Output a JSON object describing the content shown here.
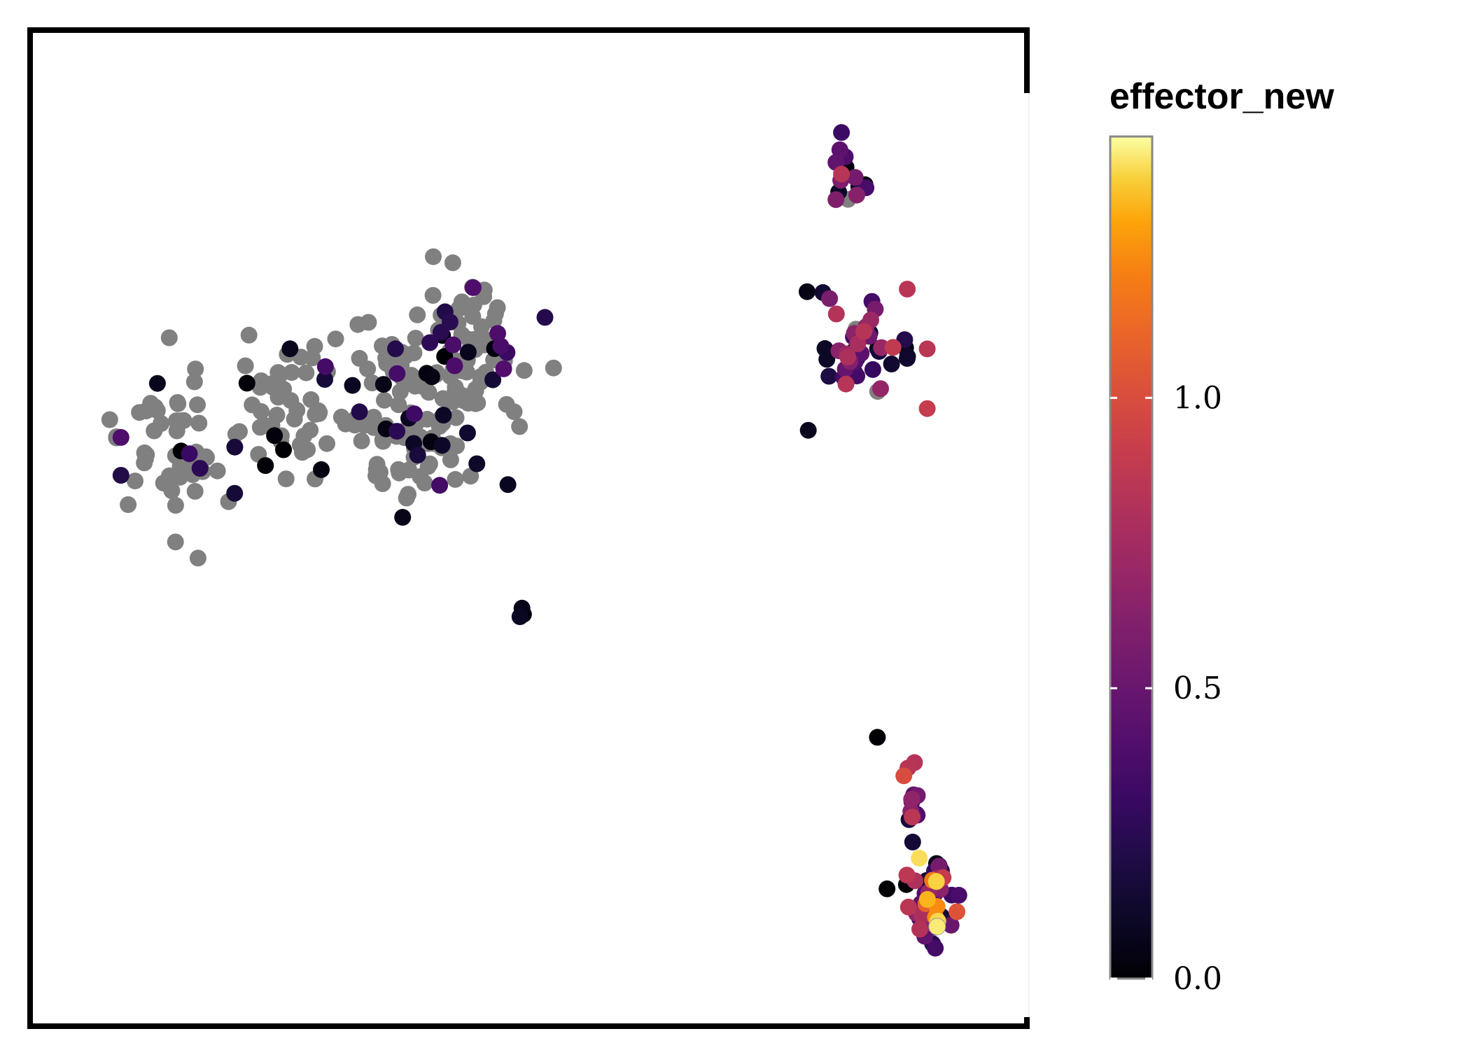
{
  "chart_data": {
    "type": "scatter",
    "title": "",
    "xlabel": "",
    "ylabel": "",
    "axes": {
      "x_ticks_visible": false,
      "y_ticks_visible": false,
      "grid": false,
      "frame": "left-top-bottom with short right segments",
      "xlim": [
        0,
        100
      ],
      "ylim": [
        0,
        100
      ]
    },
    "na_color": "#808080",
    "colorbar": {
      "title": "effector_new",
      "placement": "right",
      "range": [
        0,
        1.45
      ],
      "ticks": [
        {
          "value": 0.0,
          "label": "0.0"
        },
        {
          "value": 0.5,
          "label": "0.5"
        },
        {
          "value": 1.0,
          "label": "1.0"
        }
      ],
      "colormap": "inferno"
    },
    "clusters": [
      {
        "name": "left",
        "count": 300,
        "na_fraction": 0.82,
        "value_max": 0.45,
        "blobs": [
          {
            "cx": 14,
            "cy": 58,
            "rx": 5,
            "ry": 8,
            "n": 55
          },
          {
            "cx": 25,
            "cy": 63,
            "rx": 5,
            "ry": 7,
            "n": 55
          },
          {
            "cx": 38,
            "cy": 61,
            "rx": 7,
            "ry": 8,
            "n": 120
          },
          {
            "cx": 44,
            "cy": 68,
            "rx": 6,
            "ry": 6,
            "n": 70
          }
        ]
      },
      {
        "name": "top-right",
        "count": 60,
        "na_fraction": 0.05,
        "value_max": 0.9,
        "blobs": [
          {
            "cx": 82.5,
            "cy": 86,
            "rx": 2.5,
            "ry": 3.5,
            "n": 15
          },
          {
            "cx": 83,
            "cy": 68,
            "rx": 5,
            "ry": 5.5,
            "n": 45
          }
        ]
      },
      {
        "name": "bottom-right",
        "count": 60,
        "na_fraction": 0.02,
        "value_max": 1.4,
        "blobs": [
          {
            "cx": 90.5,
            "cy": 13,
            "rx": 2.2,
            "ry": 3.5,
            "n": 48
          },
          {
            "cx": 88.5,
            "cy": 22,
            "rx": 1.2,
            "ry": 5,
            "n": 12
          }
        ]
      },
      {
        "name": "center-small",
        "count": 3,
        "na_fraction": 0.34,
        "value_max": 0.15,
        "blobs": [
          {
            "cx": 49.2,
            "cy": 41.5,
            "rx": 0.5,
            "ry": 0.6,
            "n": 3
          }
        ]
      }
    ],
    "highlight_points": [
      {
        "x": 91,
        "y": 10,
        "value": 1.42
      },
      {
        "x": 90,
        "y": 68,
        "value": 0.85
      },
      {
        "x": 90,
        "y": 62,
        "value": 0.9
      },
      {
        "x": 88,
        "y": 74,
        "value": 0.85
      },
      {
        "x": 88.5,
        "y": 21,
        "value": 0.85
      },
      {
        "x": 85,
        "y": 29,
        "value": 0.0
      }
    ]
  }
}
